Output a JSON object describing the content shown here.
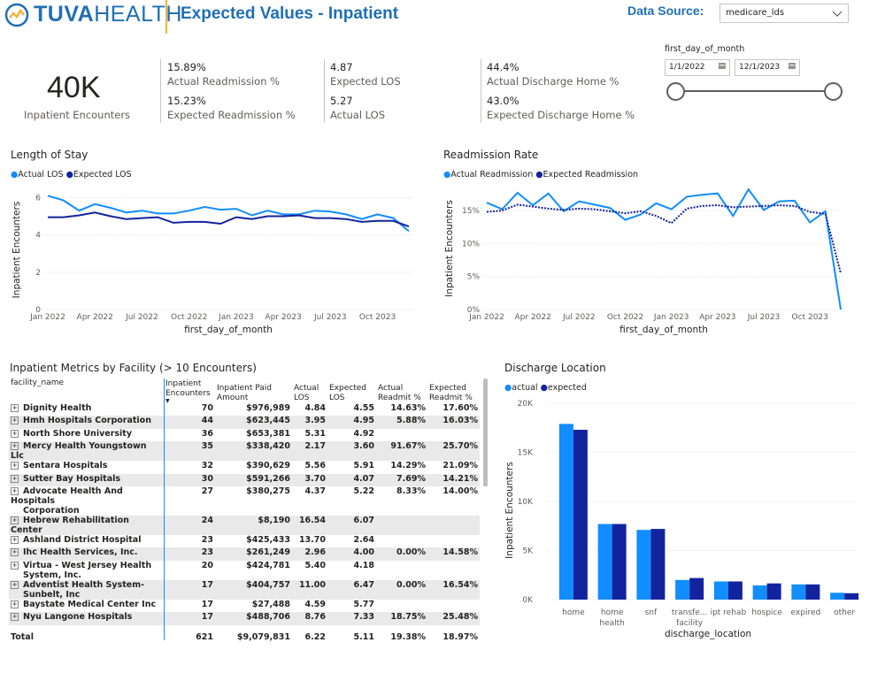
{
  "header": {
    "logo_part1": "TUVA",
    "logo_part2": "HEALTH",
    "title": "Expected Values - Inpatient",
    "data_source_label": "Data Source:",
    "data_source_value": "medicare_lds"
  },
  "kpis": {
    "encounters_value": "40K",
    "encounters_label": "Inpatient Encounters",
    "actual_readmit_value": "15.89%",
    "actual_readmit_label": "Actual Readmission %",
    "expected_readmit_value": "15.23%",
    "expected_readmit_label": "Expected Readmission %",
    "expected_los_value": "4.87",
    "expected_los_label": "Expected LOS",
    "actual_los_value": "5.27",
    "actual_los_label": "Actual LOS",
    "actual_home_value": "44.4%",
    "actual_home_label": "Actual Discharge Home %",
    "expected_home_value": "43.0%",
    "expected_home_label": "Expected Discharge Home %"
  },
  "date_slicer": {
    "label": "first_day_of_month",
    "start": "1/1/2022",
    "end": "12/1/2023"
  },
  "colors": {
    "actual": "#118DFF",
    "expected": "#12239E",
    "brand_blue": "#1F6FB4",
    "logo_orange": "#F2B33D"
  },
  "los_chart": {
    "title": "Length of Stay",
    "legend": [
      "Actual LOS",
      "Expected LOS"
    ],
    "ylabel": "Inpatient Encounters",
    "xlabel": "first_day_of_month",
    "yticks": [
      "0",
      "2",
      "4",
      "6"
    ],
    "xticks": [
      "Jan 2022",
      "Apr 2022",
      "Jul 2022",
      "Oct 2022",
      "Jan 2023",
      "Apr 2023",
      "Jul 2023",
      "Oct 2023"
    ]
  },
  "readmit_chart": {
    "title": "Readmission Rate",
    "legend": [
      "Actual Readmission",
      "Expected Readmission"
    ],
    "ylabel": "Inpatient Encounters",
    "xlabel": "first_day_of_month",
    "yticks": [
      "0%",
      "5%",
      "10%",
      "15%"
    ],
    "xticks": [
      "Jan 2022",
      "Apr 2022",
      "Jul 2022",
      "Oct 2022",
      "Jan 2023",
      "Apr 2023",
      "Jul 2023",
      "Oct 2023"
    ]
  },
  "discharge_chart": {
    "title": "Discharge Location",
    "legend": [
      "actual",
      "expected"
    ],
    "ylabel": "Inpatient Encounters",
    "xlabel": "discharge_location",
    "yticks": [
      "0K",
      "5K",
      "10K",
      "15K",
      "20K"
    ],
    "categories": [
      [
        "home"
      ],
      [
        "home",
        "health"
      ],
      [
        "snf"
      ],
      [
        "transfe...",
        "facility"
      ],
      [
        "ipt rehab"
      ],
      [
        "hospice"
      ],
      [
        "expired"
      ],
      [
        "other"
      ]
    ]
  },
  "chart_data": [
    {
      "type": "line",
      "title": "Length of Stay",
      "ylim": [
        0,
        6.4
      ],
      "x": [
        "Jan 2022",
        "Feb 2022",
        "Mar 2022",
        "Apr 2022",
        "May 2022",
        "Jun 2022",
        "Jul 2022",
        "Aug 2022",
        "Sep 2022",
        "Oct 2022",
        "Nov 2022",
        "Dec 2022",
        "Jan 2023",
        "Feb 2023",
        "Mar 2023",
        "Apr 2023",
        "May 2023",
        "Jun 2023",
        "Jul 2023",
        "Aug 2023",
        "Sep 2023",
        "Oct 2023",
        "Nov 2023",
        "Dec 2023"
      ],
      "series": [
        {
          "name": "Actual LOS",
          "values": [
            6.1,
            5.85,
            5.3,
            5.65,
            5.45,
            5.2,
            5.3,
            5.15,
            5.15,
            5.3,
            5.5,
            5.35,
            5.4,
            5.05,
            5.3,
            5.1,
            5.1,
            5.3,
            5.25,
            5.1,
            4.85,
            5.1,
            4.9,
            4.2
          ]
        },
        {
          "name": "Expected LOS",
          "values": [
            4.95,
            4.95,
            5.05,
            5.2,
            5.0,
            4.85,
            4.9,
            4.95,
            4.65,
            4.7,
            4.7,
            4.6,
            4.95,
            4.85,
            5.0,
            5.0,
            5.05,
            4.9,
            4.9,
            4.85,
            4.7,
            4.75,
            4.75,
            4.45
          ]
        }
      ]
    },
    {
      "type": "line",
      "title": "Readmission Rate",
      "ylim": [
        0,
        18.5
      ],
      "x": [
        "Jan 2022",
        "Feb 2022",
        "Mar 2022",
        "Apr 2022",
        "May 2022",
        "Jun 2022",
        "Jul 2022",
        "Aug 2022",
        "Sep 2022",
        "Oct 2022",
        "Nov 2022",
        "Dec 2022",
        "Jan 2023",
        "Feb 2023",
        "Mar 2023",
        "Apr 2023",
        "May 2023",
        "Jun 2023",
        "Jul 2023",
        "Aug 2023",
        "Sep 2023",
        "Oct 2023",
        "Nov 2023",
        "Dec 2023"
      ],
      "series": [
        {
          "name": "Actual Readmission",
          "values": [
            16.2,
            15.2,
            17.7,
            15.8,
            17.6,
            14.9,
            16.4,
            15.9,
            15.4,
            13.6,
            14.4,
            16.1,
            15.2,
            17.1,
            17.4,
            17.6,
            14.2,
            18.2,
            15.1,
            16.4,
            16.5,
            13.2,
            14.9,
            0
          ]
        },
        {
          "name": "Expected Readmission",
          "values": [
            14.8,
            15.0,
            15.9,
            15.6,
            15.3,
            15.1,
            15.3,
            15.2,
            14.9,
            14.6,
            14.9,
            14.2,
            13.1,
            15.3,
            15.7,
            15.8,
            15.5,
            15.6,
            15.7,
            15.8,
            15.7,
            14.8,
            14.5,
            5.5
          ]
        }
      ]
    },
    {
      "type": "bar",
      "title": "Discharge Location",
      "ylim": [
        0,
        20000
      ],
      "categories": [
        "home",
        "home health",
        "snf",
        "transfe... facility",
        "ipt rehab",
        "hospice",
        "expired",
        "other"
      ],
      "series": [
        {
          "name": "actual",
          "values": [
            17900,
            7700,
            7100,
            2000,
            1850,
            1450,
            1550,
            700
          ]
        },
        {
          "name": "expected",
          "values": [
            17300,
            7700,
            7200,
            2200,
            1850,
            1650,
            1550,
            650
          ]
        }
      ]
    }
  ],
  "facility_table": {
    "title": "Inpatient Metrics by Facility (> 10 Encounters)",
    "columns": [
      [
        "facility_name"
      ],
      [
        "Inpatient",
        "Encounters"
      ],
      [
        "Inpatient Paid",
        "Amount"
      ],
      [
        "Actual",
        "LOS"
      ],
      [
        "Expected",
        "LOS"
      ],
      [
        "Actual",
        "Readmit %"
      ],
      [
        "Expected",
        "Readmit %"
      ]
    ],
    "rows": [
      {
        "name": [
          "Dignity Health"
        ],
        "enc": "70",
        "paid": "$976,989",
        "alos": "4.84",
        "elos": "4.55",
        "ar": "14.63%",
        "er": "17.60%"
      },
      {
        "name": [
          "Hmh Hospitals Corporation"
        ],
        "enc": "44",
        "paid": "$623,445",
        "alos": "3.95",
        "elos": "4.95",
        "ar": "5.88%",
        "er": "16.03%"
      },
      {
        "name": [
          "North Shore University"
        ],
        "enc": "36",
        "paid": "$653,381",
        "alos": "5.31",
        "elos": "4.92",
        "ar": "",
        "er": ""
      },
      {
        "name": [
          "Mercy Health Youngstown Llc"
        ],
        "enc": "35",
        "paid": "$338,420",
        "alos": "2.17",
        "elos": "3.60",
        "ar": "91.67%",
        "er": "25.70%"
      },
      {
        "name": [
          "Sentara Hospitals"
        ],
        "enc": "32",
        "paid": "$390,629",
        "alos": "5.56",
        "elos": "5.91",
        "ar": "14.29%",
        "er": "21.09%"
      },
      {
        "name": [
          "Sutter Bay Hospitals"
        ],
        "enc": "30",
        "paid": "$591,266",
        "alos": "3.70",
        "elos": "4.07",
        "ar": "7.69%",
        "er": "14.21%"
      },
      {
        "name": [
          "Advocate Health And Hospitals",
          "Corporation"
        ],
        "enc": "27",
        "paid": "$380,275",
        "alos": "4.37",
        "elos": "5.22",
        "ar": "8.33%",
        "er": "14.00%"
      },
      {
        "name": [
          "Hebrew Rehabilitation Center"
        ],
        "enc": "24",
        "paid": "$8,190",
        "alos": "16.54",
        "elos": "6.07",
        "ar": "",
        "er": ""
      },
      {
        "name": [
          "Ashland District Hospital"
        ],
        "enc": "23",
        "paid": "$425,433",
        "alos": "13.70",
        "elos": "2.64",
        "ar": "",
        "er": ""
      },
      {
        "name": [
          "Ihc Health Services, Inc."
        ],
        "enc": "23",
        "paid": "$261,249",
        "alos": "2.96",
        "elos": "4.00",
        "ar": "0.00%",
        "er": "14.58%"
      },
      {
        "name": [
          "Virtua - West Jersey Health",
          "System, Inc."
        ],
        "enc": "20",
        "paid": "$424,781",
        "alos": "5.40",
        "elos": "4.18",
        "ar": "",
        "er": ""
      },
      {
        "name": [
          "Adventist Health System-",
          "Sunbelt, Inc"
        ],
        "enc": "17",
        "paid": "$404,757",
        "alos": "11.00",
        "elos": "6.47",
        "ar": "0.00%",
        "er": "16.54%"
      },
      {
        "name": [
          "Baystate Medical Center Inc"
        ],
        "enc": "17",
        "paid": "$27,488",
        "alos": "4.59",
        "elos": "5.77",
        "ar": "",
        "er": ""
      },
      {
        "name": [
          "Nyu Langone Hospitals"
        ],
        "enc": "17",
        "paid": "$488,706",
        "alos": "8.76",
        "elos": "7.33",
        "ar": "18.75%",
        "er": "25.48%"
      }
    ],
    "total": {
      "name": "Total",
      "enc": "621",
      "paid": "$9,079,831",
      "alos": "6.22",
      "elos": "5.11",
      "ar": "19.38%",
      "er": "18.97%"
    }
  }
}
